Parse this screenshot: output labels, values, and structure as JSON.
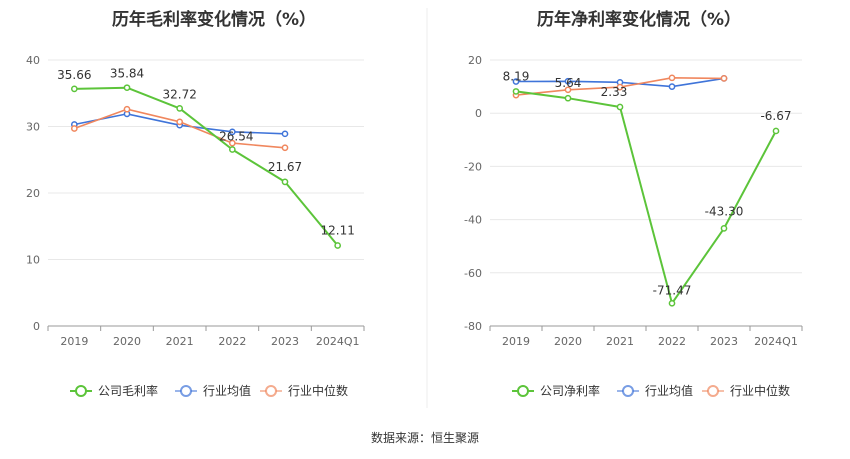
{
  "source": "数据来源：恒生聚源",
  "colors": {
    "company": "#5cc43a",
    "industry_avg": "#3f74d9",
    "industry_median": "#f0875e"
  },
  "chart_data": [
    {
      "type": "line",
      "title": "历年毛利率变化情况（%）",
      "categories": [
        "2019",
        "2020",
        "2021",
        "2022",
        "2023",
        "2024Q1"
      ],
      "ylim": [
        0,
        40
      ],
      "yticks": [
        0,
        10,
        20,
        30,
        40
      ],
      "grid": true,
      "legend_position": "bottom",
      "series": [
        {
          "name": "公司毛利率",
          "key": "company",
          "values": [
            35.66,
            35.84,
            32.72,
            26.54,
            21.67,
            12.11
          ],
          "labels": [
            "35.66",
            "35.84",
            "32.72",
            "26.54",
            "21.67",
            "12.11"
          ]
        },
        {
          "name": "行业均值",
          "key": "industry_avg",
          "values": [
            30.3,
            31.9,
            30.2,
            29.2,
            28.9,
            null
          ]
        },
        {
          "name": "行业中位数",
          "key": "industry_median",
          "values": [
            29.7,
            32.6,
            30.7,
            27.5,
            26.8,
            null
          ]
        }
      ]
    },
    {
      "type": "line",
      "title": "历年净利率变化情况（%）",
      "categories": [
        "2019",
        "2020",
        "2021",
        "2022",
        "2023",
        "2024Q1"
      ],
      "ylim": [
        -80,
        20
      ],
      "yticks": [
        -80,
        -60,
        -40,
        -20,
        0,
        20
      ],
      "grid": true,
      "legend_position": "bottom",
      "series": [
        {
          "name": "公司净利率",
          "key": "company",
          "values": [
            8.19,
            5.64,
            2.33,
            -71.47,
            -43.3,
            -6.67
          ],
          "labels": [
            "8.19",
            "5.64",
            "2.33",
            "-71.47",
            "-43.30",
            "-6.67"
          ]
        },
        {
          "name": "行业均值",
          "key": "industry_avg",
          "values": [
            11.9,
            12.0,
            11.6,
            10.0,
            13.1,
            null
          ]
        },
        {
          "name": "行业中位数",
          "key": "industry_median",
          "values": [
            6.8,
            8.8,
            9.8,
            13.3,
            13.1,
            null
          ]
        }
      ]
    }
  ]
}
